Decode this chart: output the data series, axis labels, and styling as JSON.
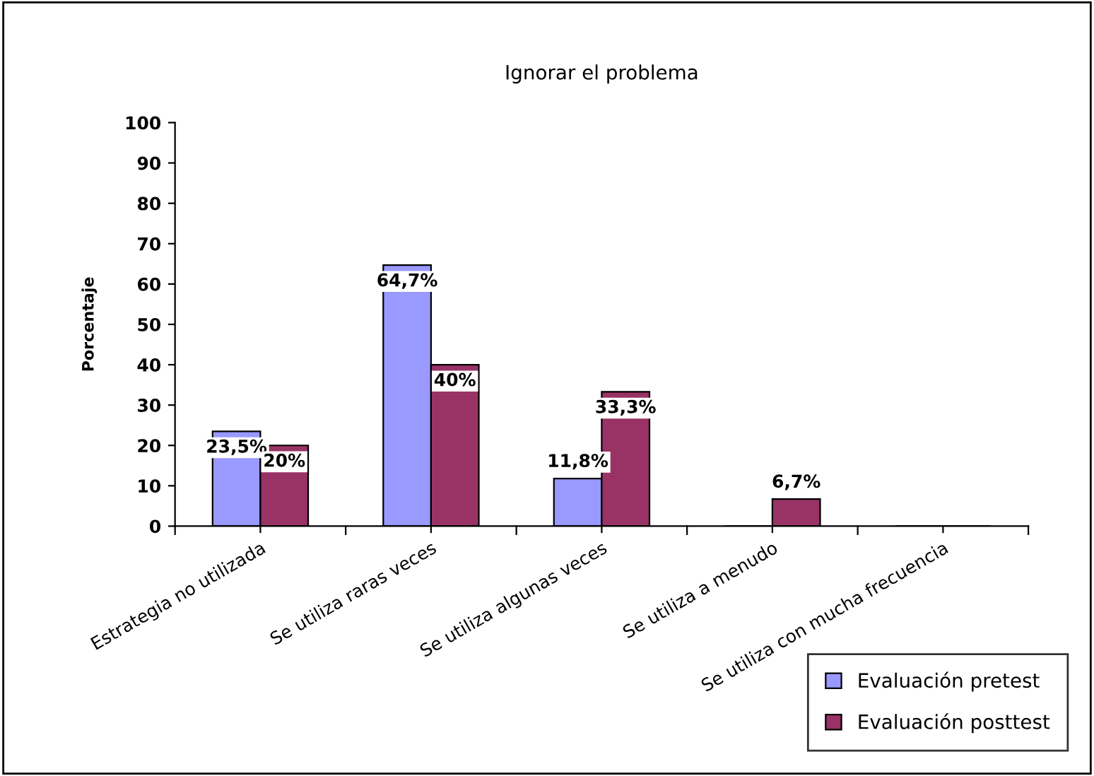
{
  "chart_data": {
    "type": "bar",
    "title": "Ignorar el problema",
    "ylabel": "Porcentaje",
    "categories": [
      "Estrategia no utilizada",
      "Se utiliza raras veces",
      "Se utiliza algunas veces",
      "Se utiliza a menudo",
      "Se utiliza con mucha frecuencia"
    ],
    "series": [
      {
        "name": "Evaluación pretest",
        "color": "#9999ff",
        "values": [
          23.5,
          64.7,
          11.8,
          0,
          0
        ],
        "value_labels": [
          "23,5%",
          "64,7%",
          "11,8%",
          null,
          null
        ]
      },
      {
        "name": "Evaluación posttest",
        "color": "#993366",
        "values": [
          20,
          40,
          33.3,
          6.7,
          0
        ],
        "value_labels": [
          "20%",
          "40%",
          "33,3%",
          "6,7%",
          null
        ]
      }
    ],
    "ylim": [
      0,
      100
    ],
    "yticks": [
      0,
      10,
      20,
      30,
      40,
      50,
      60,
      70,
      80,
      90,
      100
    ],
    "grid": false,
    "legend": "bottom right"
  }
}
